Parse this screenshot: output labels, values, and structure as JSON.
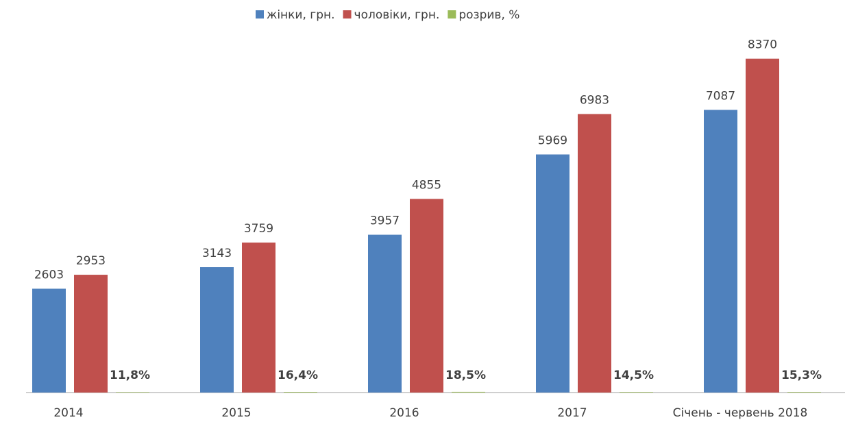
{
  "chart_data": {
    "type": "bar",
    "categories": [
      "2014",
      "2015",
      "2016",
      "2017",
      "Січень - червень 2018"
    ],
    "series": [
      {
        "name": "жінки, грн.",
        "color": "#4f81bd",
        "values": [
          2603,
          3143,
          3957,
          5969,
          7087
        ]
      },
      {
        "name": "чоловіки, грн.",
        "color": "#c0504d",
        "values": [
          2953,
          3759,
          4855,
          6983,
          8370
        ]
      },
      {
        "name": "розрив, %",
        "color": "#9bbb59",
        "values": [
          11.8,
          16.4,
          18.5,
          14.5,
          15.3
        ],
        "value_labels": [
          "11,8%",
          "16,4%",
          "18,5%",
          "14,5%",
          "15,3%"
        ]
      }
    ],
    "ylim": [
      0,
      9000
    ],
    "legend": "top"
  }
}
